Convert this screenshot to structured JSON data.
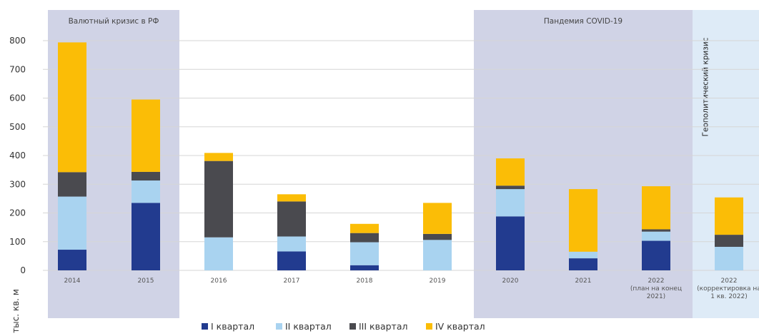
{
  "chart_data": {
    "type": "bar",
    "stacked": true,
    "ylabel": "тыс. кв. м",
    "ylim": [
      0,
      800
    ],
    "yticks": [
      0,
      100,
      200,
      300,
      400,
      500,
      600,
      700,
      800
    ],
    "grid": true,
    "legend_position": "bottom",
    "categories": [
      [
        "2014"
      ],
      [
        "2015"
      ],
      [
        "2016"
      ],
      [
        "2017"
      ],
      [
        "2018"
      ],
      [
        "2019"
      ],
      [
        "2020"
      ],
      [
        "2021"
      ],
      [
        "2022",
        "(план на конец",
        "2021)"
      ],
      [
        "2022",
        "(корректировка на",
        "1 кв. 2022)"
      ]
    ],
    "series": [
      {
        "name": "I квартал",
        "color": "#223b8f",
        "values": [
          72,
          235,
          0,
          66,
          18,
          0,
          188,
          42,
          103,
          0
        ]
      },
      {
        "name": "II квартал",
        "color": "#a9d3f0",
        "values": [
          185,
          78,
          115,
          52,
          80,
          106,
          95,
          23,
          32,
          82
        ]
      },
      {
        "name": "III квартал",
        "color": "#4a4a4f",
        "values": [
          85,
          30,
          266,
          122,
          32,
          21,
          12,
          0,
          8,
          42
        ]
      },
      {
        "name": "IV квартал",
        "color": "#fbbd06",
        "values": [
          452,
          252,
          28,
          25,
          32,
          108,
          95,
          218,
          150,
          130
        ]
      }
    ],
    "regions": [
      {
        "label": "Валютный кризис в РФ",
        "from": 0,
        "to": 1,
        "color": "#d0d3e6"
      },
      {
        "label": "Пандемия COVID-19",
        "from": 6,
        "to": 8,
        "color": "#d0d3e6"
      },
      {
        "label": "Геополитический кризис",
        "from": 9,
        "to": 9,
        "color": "#deebf7",
        "vertical": true
      }
    ]
  }
}
